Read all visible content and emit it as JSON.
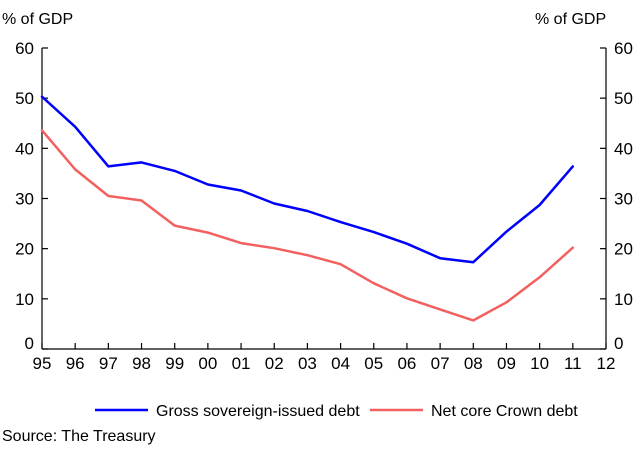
{
  "chart_data": {
    "type": "line",
    "left_axis_unit": "% of GDP",
    "right_axis_unit": "% of GDP",
    "x_ticks": [
      "95",
      "96",
      "97",
      "98",
      "99",
      "00",
      "01",
      "02",
      "03",
      "04",
      "05",
      "06",
      "07",
      "08",
      "09",
      "10",
      "11",
      "12"
    ],
    "y_ticks": [
      "0",
      "10",
      "20",
      "30",
      "40",
      "50",
      "60"
    ],
    "ylim": [
      0,
      60
    ],
    "grid": false,
    "legend_position": "bottom",
    "series": [
      {
        "name": "Gross sovereign-issued debt",
        "color": "#0000ff",
        "x": [
          "95",
          "96",
          "97",
          "98",
          "99",
          "00",
          "01",
          "02",
          "03",
          "04",
          "05",
          "06",
          "07",
          "08",
          "09",
          "10",
          "11"
        ],
        "values": [
          50.3,
          44.3,
          36.4,
          37.2,
          35.5,
          32.8,
          31.6,
          29.0,
          27.5,
          25.3,
          23.3,
          21.0,
          18.1,
          17.3,
          23.4,
          28.7,
          36.4
        ]
      },
      {
        "name": "Net core Crown debt",
        "color": "#f26060",
        "x": [
          "95",
          "96",
          "97",
          "98",
          "99",
          "00",
          "01",
          "02",
          "03",
          "04",
          "05",
          "06",
          "07",
          "08",
          "09",
          "10",
          "11"
        ],
        "values": [
          43.6,
          35.8,
          30.5,
          29.6,
          24.6,
          23.2,
          21.1,
          20.1,
          18.7,
          16.9,
          13.1,
          10.1,
          7.9,
          5.7,
          9.3,
          14.3,
          20.2
        ]
      }
    ],
    "source": "Source: The Treasury"
  }
}
